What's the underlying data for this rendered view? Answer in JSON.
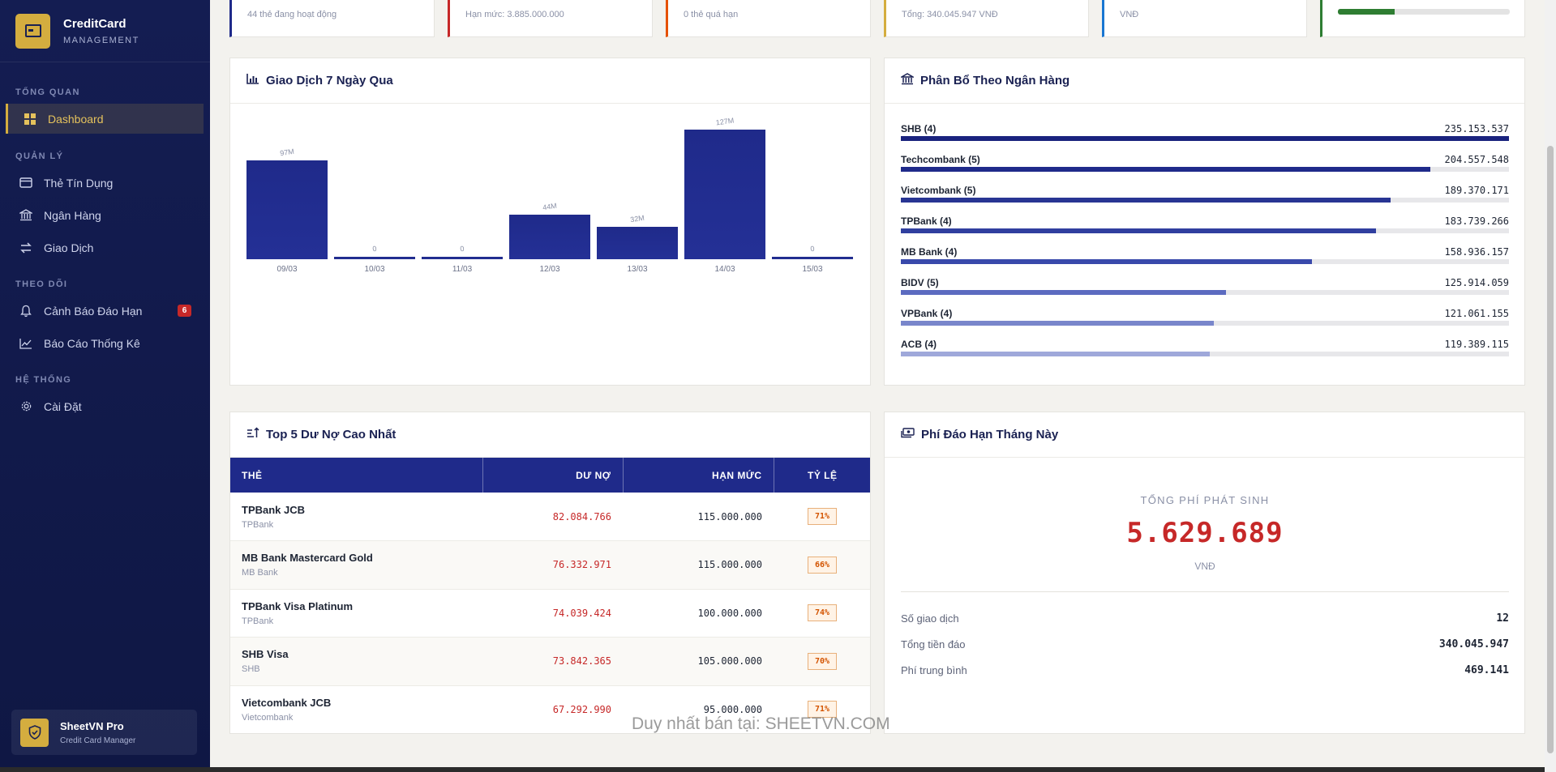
{
  "brand": {
    "title": "CreditCard",
    "subtitle": "MANAGEMENT"
  },
  "sidebar": {
    "sections": [
      "TỔNG QUAN",
      "QUẢN LÝ",
      "THEO DÕI",
      "HỆ THỐNG"
    ],
    "items": [
      {
        "label": "Dashboard",
        "icon": "grid-icon"
      },
      {
        "label": "Thẻ Tín Dụng",
        "icon": "credit-card-icon"
      },
      {
        "label": "Ngân Hàng",
        "icon": "bank-icon"
      },
      {
        "label": "Giao Dịch",
        "icon": "exchange-icon"
      },
      {
        "label": "Cảnh Báo Đáo Hạn",
        "icon": "bell-icon",
        "badge": "6"
      },
      {
        "label": "Báo Cáo Thống Kê",
        "icon": "chart-icon"
      },
      {
        "label": "Cài Đặt",
        "icon": "gear-icon"
      }
    ],
    "footer": {
      "title": "SheetVN Pro",
      "subtitle": "Credit Card Manager"
    }
  },
  "kpis": [
    {
      "sub": "44 thẻ đang hoạt động",
      "color": "#1f2a8a"
    },
    {
      "sub": "Hạn mức: 3.885.000.000",
      "color": "#c62828"
    },
    {
      "sub": "0 thẻ quá hạn",
      "color": "#e65100"
    },
    {
      "sub": "Tổng: 340.045.947 VNĐ",
      "color": "#d4ad3f"
    },
    {
      "sub": "VNĐ",
      "color": "#1976d2"
    },
    {
      "progress": 0.33,
      "color": "#2e7d32"
    }
  ],
  "chart_panel": {
    "title": "Giao Dịch 7 Ngày Qua"
  },
  "chart_data": {
    "type": "bar",
    "categories": [
      "09/03",
      "10/03",
      "11/03",
      "12/03",
      "13/03",
      "14/03",
      "15/03"
    ],
    "values": [
      97,
      0,
      0,
      44,
      32,
      127,
      0
    ],
    "value_labels": [
      "97M",
      "0",
      "0",
      "44M",
      "32M",
      "127M",
      "0"
    ],
    "ylim": [
      0,
      127
    ],
    "color": "#1f2a8a"
  },
  "bank_panel": {
    "title": "Phân Bổ Theo Ngân Hàng",
    "banks": [
      {
        "name": "SHB (4)",
        "value": "235.153.537",
        "fraction": 1.0,
        "color": "#1a237e"
      },
      {
        "name": "Techcombank (5)",
        "value": "204.557.548",
        "fraction": 0.87,
        "color": "#1f2a8a"
      },
      {
        "name": "Vietcombank (5)",
        "value": "189.370.171",
        "fraction": 0.805,
        "color": "#283593"
      },
      {
        "name": "TPBank (4)",
        "value": "183.739.266",
        "fraction": 0.781,
        "color": "#303f9f"
      },
      {
        "name": "MB Bank (4)",
        "value": "158.936.157",
        "fraction": 0.676,
        "color": "#3949ab"
      },
      {
        "name": "BIDV (5)",
        "value": "125.914.059",
        "fraction": 0.535,
        "color": "#5c6bc0"
      },
      {
        "name": "VPBank (4)",
        "value": "121.061.155",
        "fraction": 0.515,
        "color": "#7986cb"
      },
      {
        "name": "ACB (4)",
        "value": "119.389.115",
        "fraction": 0.508,
        "color": "#9fa8da"
      }
    ]
  },
  "top_debt": {
    "title": "Top 5 Dư Nợ Cao Nhất",
    "headers": [
      "THẺ",
      "DƯ NỢ",
      "HẠN MỨC",
      "TỶ LỆ"
    ],
    "rows": [
      {
        "card": "TPBank JCB",
        "bank": "TPBank",
        "debt": "82.084.766",
        "limit": "115.000.000",
        "ratio": "71%"
      },
      {
        "card": "MB Bank Mastercard Gold",
        "bank": "MB Bank",
        "debt": "76.332.971",
        "limit": "115.000.000",
        "ratio": "66%"
      },
      {
        "card": "TPBank Visa Platinum",
        "bank": "TPBank",
        "debt": "74.039.424",
        "limit": "100.000.000",
        "ratio": "74%"
      },
      {
        "card": "SHB Visa",
        "bank": "SHB",
        "debt": "73.842.365",
        "limit": "105.000.000",
        "ratio": "70%"
      },
      {
        "card": "Vietcombank JCB",
        "bank": "Vietcombank",
        "debt": "67.292.990",
        "limit": "95.000.000",
        "ratio": "71%"
      }
    ]
  },
  "fee_panel": {
    "title": "Phí Đáo Hạn Tháng Này",
    "total_label": "TỔNG PHÍ PHÁT SINH",
    "total": "5.629.689",
    "unit": "VNĐ",
    "stats": [
      {
        "label": "Số giao dịch",
        "value": "12"
      },
      {
        "label": "Tổng tiền đáo",
        "value": "340.045.947"
      },
      {
        "label": "Phí trung bình",
        "value": "469.141"
      }
    ]
  },
  "watermark": "Duy nhất bán tại: SHEETVN.COM"
}
